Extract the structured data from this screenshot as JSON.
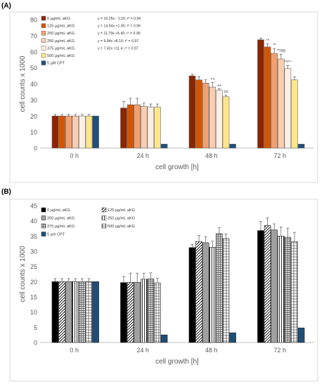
{
  "panels": [
    {
      "label": "(A)"
    },
    {
      "label": "(B)"
    }
  ],
  "chart_data": [
    {
      "type": "bar",
      "xlabel": "cell growth [h]",
      "ylabel": "cell counts x 1000",
      "ylim": [
        0,
        80
      ],
      "yticks": [
        0,
        10,
        20,
        30,
        40,
        50,
        60,
        70,
        80
      ],
      "grid": false,
      "legend_position": "top-left",
      "categories": [
        "0 h",
        "24 h",
        "48 h",
        "72 h"
      ],
      "series": [
        {
          "name": "0 µg/mL aKG",
          "values": [
            20,
            25,
            45,
            67.5
          ],
          "errors": [
            1,
            4,
            1,
            1
          ],
          "color": "#8B2500",
          "pattern": "solid",
          "annotations": [
            "",
            "",
            "",
            ""
          ]
        },
        {
          "name": "125 µg/mL aKG",
          "values": [
            20,
            27,
            42.5,
            63
          ],
          "errors": [
            1,
            4,
            2,
            2
          ],
          "color": "#D45500",
          "pattern": "solid",
          "annotations": [
            "",
            "",
            "",
            "**"
          ]
        },
        {
          "name": "200 µg/mL aKG",
          "values": [
            20,
            27,
            40.5,
            59
          ],
          "errors": [
            1,
            4,
            2,
            3
          ],
          "color": "#F0A070",
          "pattern": "solid",
          "annotations": [
            "",
            "",
            "",
            "**"
          ]
        },
        {
          "name": "250 µg/mL aKG",
          "values": [
            20,
            26,
            38,
            55.5
          ],
          "errors": [
            1,
            2,
            3,
            3
          ],
          "color": "#F8CDB0",
          "pattern": "solid",
          "annotations": [
            "",
            "",
            "++",
            "**/§§"
          ]
        },
        {
          "name": "375 µg/mL aKG",
          "values": [
            20,
            25.5,
            36,
            49.5
          ],
          "errors": [
            1,
            2,
            1,
            2
          ],
          "color": "#FDEFE6",
          "pattern": "solid",
          "annotations": [
            "",
            "",
            "++",
            "**/°°"
          ]
        },
        {
          "name": "500 µg/mL aKG",
          "values": [
            20,
            25.5,
            32,
            42.5
          ],
          "errors": [
            1,
            2,
            1,
            2
          ],
          "color": "#FFE68A",
          "pattern": "solid",
          "annotations": [
            "",
            "",
            "##",
            ""
          ]
        },
        {
          "name": "5 µM CPT",
          "values": [
            20,
            2.5,
            2.5,
            2.5
          ],
          "errors": [
            0,
            0,
            0,
            0
          ],
          "color": "#1F4E79",
          "pattern": "solid",
          "annotations": [
            "",
            "",
            "",
            ""
          ]
        }
      ],
      "equations": [
        "y = 16.25x - 1.15; r² = 0.94",
        "y = 14.54x +1.95; r² = 0.96",
        "y = 11.79x +5.40; r² = 0.96",
        "y =  9.84x +8.10; r² = 0.97",
        "y =  7.42x +11.4; r² = 0.97"
      ]
    },
    {
      "type": "bar",
      "xlabel": "cell growth [h]",
      "ylabel": "cell counts x 1000",
      "ylim": [
        0,
        45
      ],
      "yticks": [
        0,
        5,
        10,
        15,
        20,
        25,
        30,
        35,
        40,
        45
      ],
      "grid": false,
      "legend_position": "top-left",
      "categories": [
        "0 h",
        "24 h",
        "48 h",
        "72 h"
      ],
      "series": [
        {
          "name": "0 µg/mL aKG",
          "values": [
            20,
            19.7,
            31.2,
            36.8
          ],
          "errors": [
            1,
            2,
            1,
            3
          ],
          "color": "#000000",
          "pattern": "solid"
        },
        {
          "name": "125 µg/mL aKG",
          "values": [
            20,
            19.8,
            33.2,
            38.5
          ],
          "errors": [
            1,
            3,
            2,
            2.5
          ],
          "color": "#000000",
          "pattern": "diagonal"
        },
        {
          "name": "200 µg/mL aKG",
          "values": [
            20,
            19.8,
            32.8,
            37.0
          ],
          "errors": [
            1,
            3,
            2,
            2
          ],
          "color": "#A0A0A0",
          "pattern": "solid"
        },
        {
          "name": "250 µg/mL aKG",
          "values": [
            20,
            20.8,
            31.3,
            35.0
          ],
          "errors": [
            1,
            2,
            2,
            3
          ],
          "color": "#000000",
          "pattern": "vertical"
        },
        {
          "name": "375 µg/mL aKG",
          "values": [
            20,
            20.9,
            35.8,
            34.6
          ],
          "errors": [
            1,
            2,
            2,
            3
          ],
          "color": "#808080",
          "pattern": "grid"
        },
        {
          "name": "500 µg/mL aKG",
          "values": [
            20,
            19.6,
            34.2,
            33.2
          ],
          "errors": [
            1,
            1.5,
            1.5,
            3
          ],
          "color": "#000000",
          "pattern": "hgrid"
        },
        {
          "name": "5 µm CPT",
          "values": [
            20,
            2.5,
            3.2,
            4.8
          ],
          "errors": [
            0,
            0,
            0,
            0
          ],
          "color": "#1F4E79",
          "pattern": "solid"
        }
      ]
    }
  ]
}
